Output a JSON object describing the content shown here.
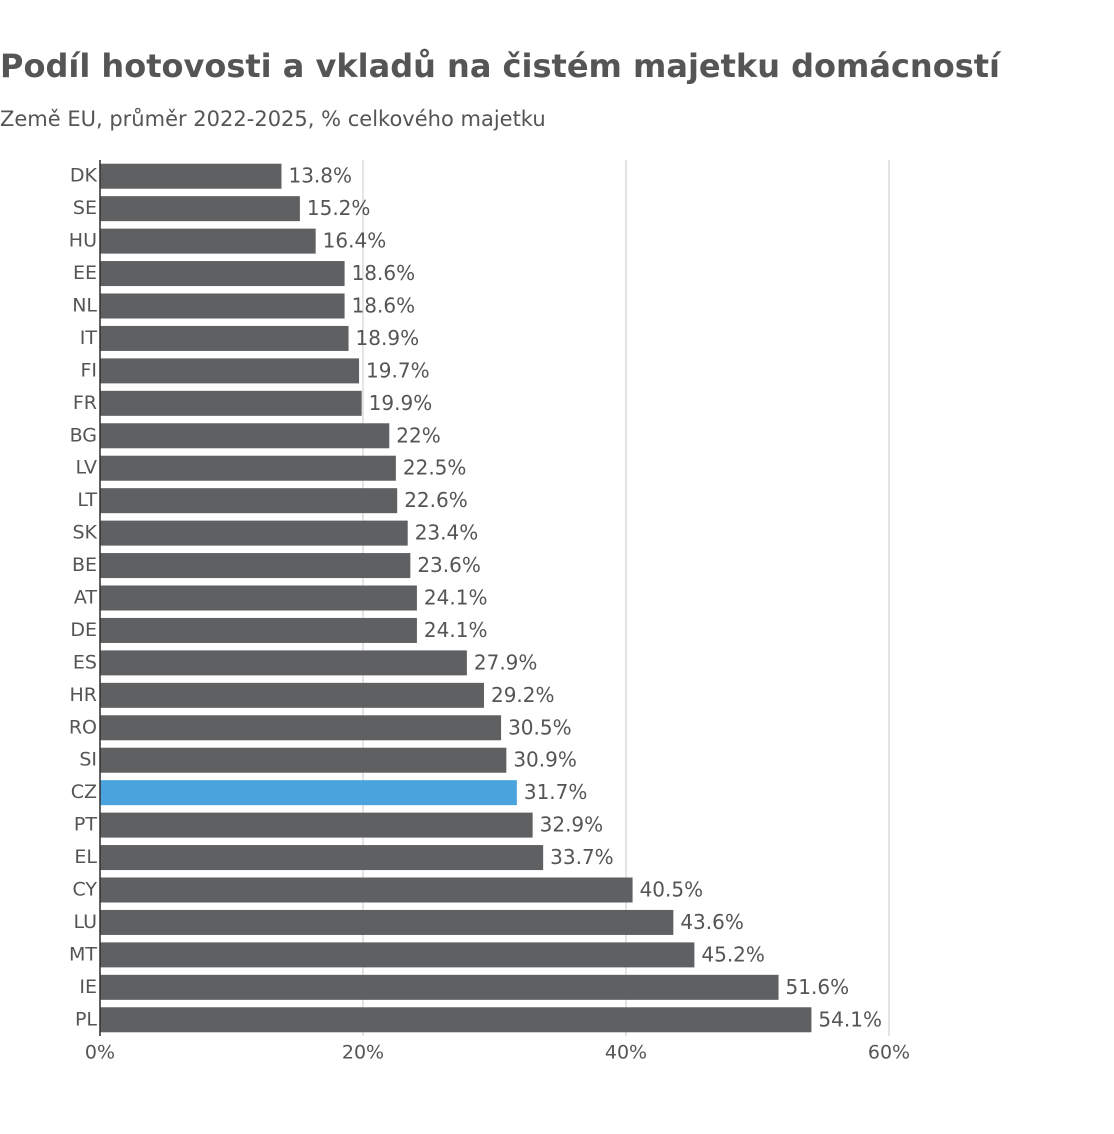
{
  "chart_data": {
    "type": "hbar",
    "title": "Podíl hotovosti a vkladů na čistém majetku domácností",
    "subtitle": "Země EU, průměr 2022-2025, % celkového majetku",
    "categories": [
      "DK",
      "SE",
      "HU",
      "EE",
      "NL",
      "IT",
      "FI",
      "FR",
      "BG",
      "LV",
      "LT",
      "SK",
      "BE",
      "AT",
      "DE",
      "ES",
      "HR",
      "RO",
      "SI",
      "CZ",
      "PT",
      "EL",
      "CY",
      "LU",
      "MT",
      "IE",
      "PL"
    ],
    "values": [
      13.8,
      15.2,
      16.4,
      18.6,
      18.6,
      18.9,
      19.7,
      19.9,
      22,
      22.5,
      22.6,
      23.4,
      23.6,
      24.1,
      24.1,
      27.9,
      29.2,
      30.5,
      30.9,
      31.7,
      32.9,
      33.7,
      40.5,
      43.6,
      45.2,
      51.6,
      54.1
    ],
    "value_labels": [
      "13.8%",
      "15.2%",
      "16.4%",
      "18.6%",
      "18.6%",
      "18.9%",
      "19.7%",
      "19.9%",
      "22%",
      "22.5%",
      "22.6%",
      "23.4%",
      "23.6%",
      "24.1%",
      "24.1%",
      "27.9%",
      "29.2%",
      "30.5%",
      "30.9%",
      "31.7%",
      "32.9%",
      "33.7%",
      "40.5%",
      "43.6%",
      "45.2%",
      "51.6%",
      "54.1%"
    ],
    "colors": [
      "#5f6062",
      "#5f6062",
      "#5f6062",
      "#5f6062",
      "#5f6062",
      "#5f6062",
      "#5f6062",
      "#5f6062",
      "#5f6062",
      "#5f6062",
      "#5f6062",
      "#5f6062",
      "#5f6062",
      "#5f6062",
      "#5f6062",
      "#5f6062",
      "#5f6062",
      "#5f6062",
      "#5f6062",
      "#4ba3de",
      "#5f6062",
      "#5f6062",
      "#5f6062",
      "#5f6062",
      "#5f6062",
      "#5f6062",
      "#5f6062"
    ],
    "xlim": [
      0,
      60
    ],
    "xticks": [
      {
        "value": 0,
        "label": "0%"
      },
      {
        "value": 20,
        "label": "20%"
      },
      {
        "value": 40,
        "label": "40%"
      },
      {
        "value": 60,
        "label": "60%"
      }
    ],
    "grid": true
  }
}
